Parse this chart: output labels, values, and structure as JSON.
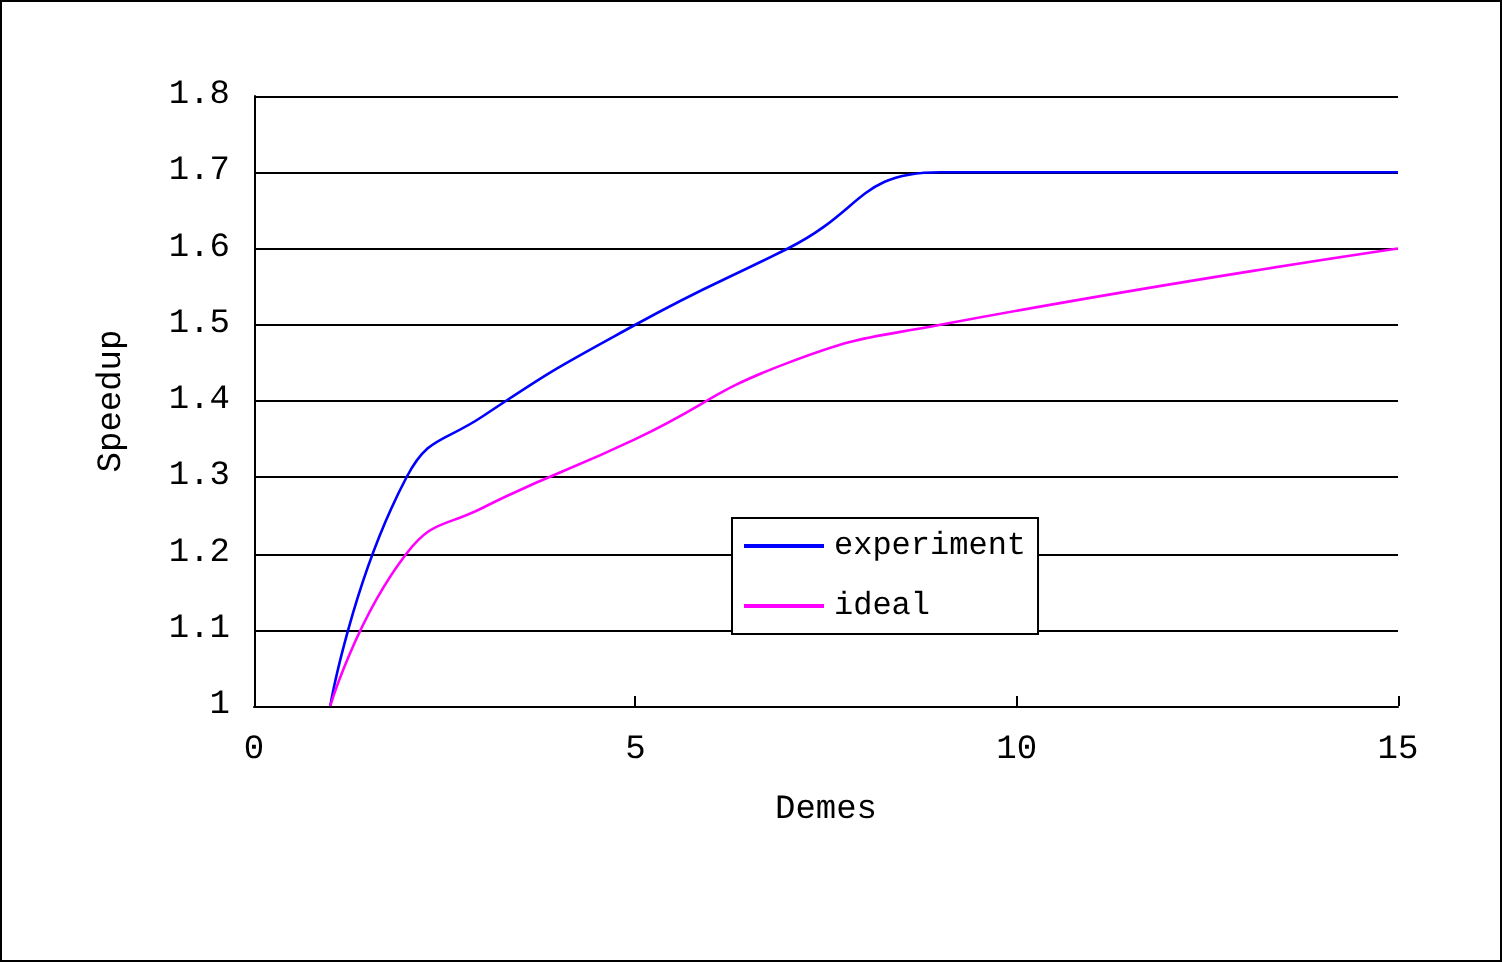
{
  "chart_data": {
    "type": "line",
    "xlabel": "Demes",
    "ylabel": "Speedup",
    "x": [
      1,
      2,
      3,
      5,
      7,
      9,
      15
    ],
    "series": [
      {
        "name": "experiment",
        "color": "#0000ff",
        "values": [
          1.0,
          1.3,
          1.38,
          1.5,
          1.6,
          1.7,
          1.7
        ]
      },
      {
        "name": "ideal",
        "color": "#ff00ff",
        "values": [
          1.0,
          1.2,
          1.26,
          1.35,
          1.45,
          1.5,
          1.6
        ]
      }
    ],
    "xlim": [
      0,
      15
    ],
    "xticks": [
      0,
      5,
      10,
      15
    ],
    "ylim": [
      1,
      1.8
    ],
    "yticks": [
      1,
      1.1,
      1.2,
      1.3,
      1.4,
      1.5,
      1.6,
      1.7,
      1.8
    ],
    "grid": "y",
    "legend": "bottom",
    "marker": "none",
    "line_style": "solid"
  }
}
